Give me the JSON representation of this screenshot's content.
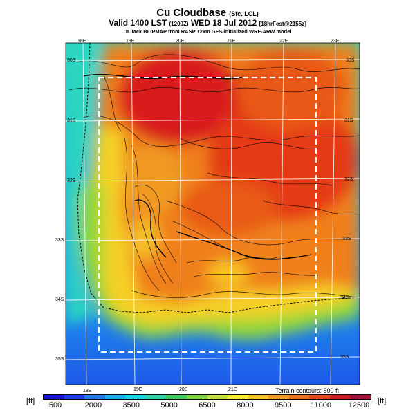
{
  "header": {
    "title": "Cu Cloudbase",
    "title_suffix": "(Sfc. LCL)",
    "valid": "Valid 1400 LST",
    "valid_code": "(1200Z)",
    "valid_date": "WED 18 Jul 2012",
    "valid_tail": "[18hrFcst@2155z]",
    "source": "Dr.Jack BLIPMAP from RASP 12km GFS-initialized WRF-ARW model"
  },
  "map": {
    "top_longitudes": [
      "18E",
      "19E",
      "20E",
      "21E",
      "22E",
      "23E"
    ],
    "bottom_longitudes": [
      "18E",
      "19E",
      "20E",
      "21E"
    ],
    "left_latitudes": [
      "30S",
      "31S",
      "32S",
      "33S",
      "34S",
      "35S"
    ],
    "right_latitudes": [
      "30S",
      "31S",
      "32S",
      "33S",
      "34S",
      "35S"
    ],
    "contour_note": "Terrain contours: 500 ft"
  },
  "colorbar": {
    "unit_left": "[ft]",
    "unit_right": "[ft]",
    "ticks": [
      "500",
      "2000",
      "3500",
      "5000",
      "6500",
      "8000",
      "9500",
      "11000",
      "12500"
    ],
    "colors": [
      "#1a12d8",
      "#1f3ef0",
      "#1e7bf5",
      "#16aef2",
      "#16d6e6",
      "#2ad6a8",
      "#3fcc5e",
      "#7cd63c",
      "#c2e23a",
      "#f5ea2c",
      "#f7c622",
      "#f59a1c",
      "#f07018",
      "#e84416",
      "#d41a22",
      "#a8103a"
    ]
  }
}
